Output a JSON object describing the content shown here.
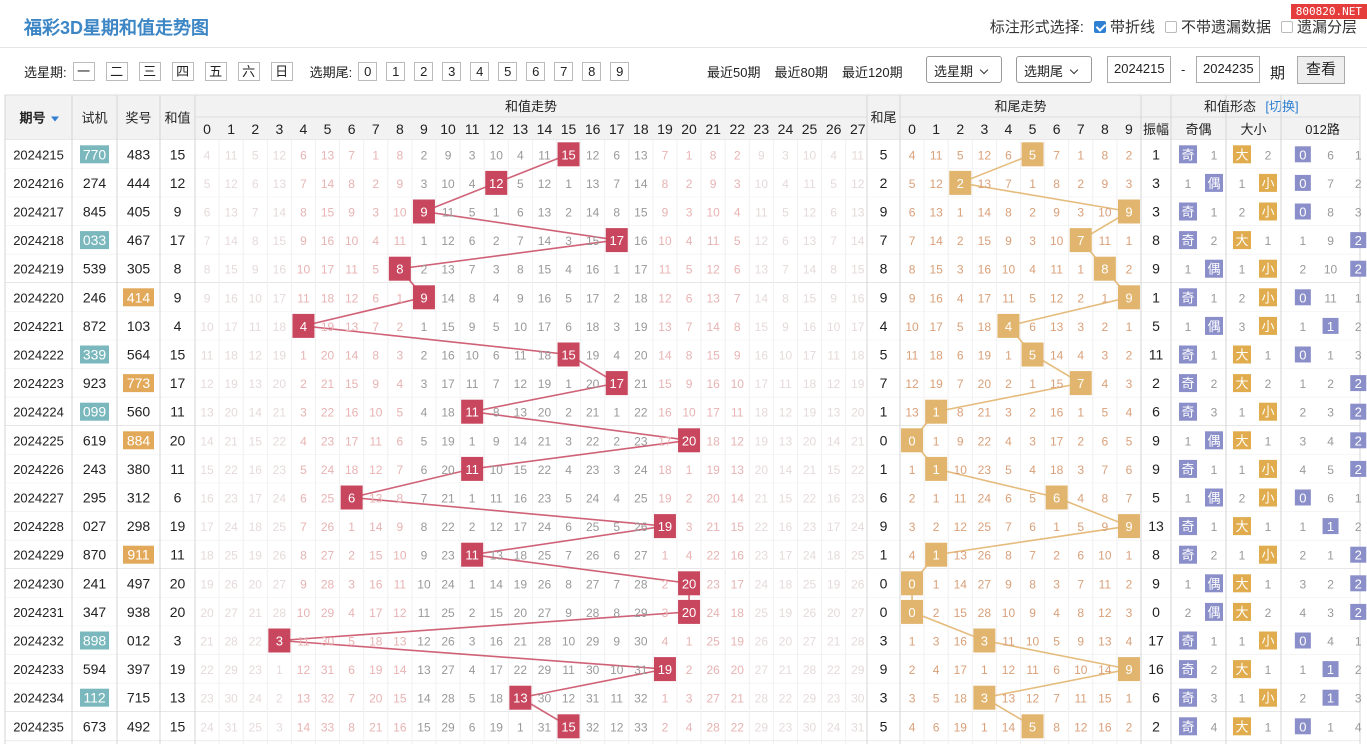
{
  "header": {
    "title": "福彩3D星期和值走势图",
    "mark_label": "标注形式选择:",
    "opt_line": "带折线",
    "opt_nomiss": "不带遗漏数据",
    "opt_layer": "遗漏分层",
    "brand": "800820.NET"
  },
  "filter": {
    "week_label": "选星期:",
    "weekdays": [
      "一",
      "二",
      "三",
      "四",
      "五",
      "六",
      "日"
    ],
    "tail_label": "选期尾:",
    "tails": [
      "0",
      "1",
      "2",
      "3",
      "4",
      "5",
      "6",
      "7",
      "8",
      "9"
    ],
    "recent": [
      "最近50期",
      "最近80期",
      "最近120期"
    ],
    "select_week": "选星期",
    "select_tail": "选期尾",
    "from": "2024215",
    "dash": "-",
    "to": "2024235",
    "unit": "期",
    "query": "查看"
  },
  "table": {
    "h_issue": "期号",
    "h_test": "试机",
    "h_prize": "奖号",
    "h_sum": "和值",
    "h_trend": "和值走势",
    "h_tail": "和尾",
    "h_tailtrend": "和尾走势",
    "h_form": "和值形态",
    "h_switch": "[切换]",
    "h_amp": "振幅",
    "h_oe": "奇偶",
    "h_bs": "大小",
    "h_012": "012路",
    "sum_cols": [
      "0",
      "1",
      "2",
      "3",
      "4",
      "5",
      "6",
      "7",
      "8",
      "9",
      "10",
      "11",
      "12",
      "13",
      "14",
      "15",
      "16",
      "17",
      "18",
      "19",
      "20",
      "21",
      "22",
      "23",
      "24",
      "25",
      "26",
      "27"
    ],
    "tail_cols": [
      "0",
      "1",
      "2",
      "3",
      "4",
      "5",
      "6",
      "7",
      "8",
      "9"
    ]
  },
  "colors": {
    "sum_hit": "#c8475f",
    "tail_hit": "#e2b56f",
    "test_teal": "#7ab8bd",
    "test_orange": "#e2a95a",
    "odd_even": "#8b8fc9",
    "big_small": "#e0ac4d",
    "route0": "#8b8fc9",
    "route1": "#8b8fc9",
    "route2": "#8b8fc9"
  },
  "rows": [
    {
      "issue": "2024215",
      "test": "770",
      "tt": "teal",
      "prize": "483",
      "pt": "",
      "sum": "15",
      "tail": "5",
      "amp": "1",
      "oe": "奇",
      "oem": "1",
      "bs": "大",
      "bsm": "2",
      "r": [
        0,
        6,
        1
      ],
      "rc": 0
    },
    {
      "issue": "2024216",
      "test": "274",
      "tt": "",
      "prize": "444",
      "pt": "",
      "sum": "12",
      "tail": "2",
      "amp": "3",
      "oe": "偶",
      "oem": "1",
      "bs": "小",
      "bsm": "1",
      "r": [
        0,
        7,
        2
      ],
      "rc": 0
    },
    {
      "issue": "2024217",
      "test": "845",
      "tt": "",
      "prize": "405",
      "pt": "",
      "sum": "9",
      "tail": "9",
      "amp": "3",
      "oe": "奇",
      "oem": "1",
      "bs": "小",
      "bsm": "2",
      "r": [
        0,
        8,
        3
      ],
      "rc": 0
    },
    {
      "issue": "2024218",
      "test": "033",
      "tt": "teal",
      "prize": "467",
      "pt": "",
      "sum": "17",
      "tail": "7",
      "amp": "8",
      "oe": "奇",
      "oem": "2",
      "bs": "大",
      "bsm": "1",
      "r": [
        1,
        9,
        2
      ],
      "rc": 2
    },
    {
      "issue": "2024219",
      "test": "539",
      "tt": "",
      "prize": "305",
      "pt": "",
      "sum": "8",
      "tail": "8",
      "amp": "9",
      "oe": "偶",
      "oem": "1",
      "bs": "小",
      "bsm": "1",
      "r": [
        2,
        10,
        2
      ],
      "rc": 2
    },
    {
      "issue": "2024220",
      "test": "246",
      "tt": "",
      "prize": "414",
      "pt": "orange",
      "sum": "9",
      "tail": "9",
      "amp": "1",
      "oe": "奇",
      "oem": "1",
      "bs": "小",
      "bsm": "2",
      "r": [
        0,
        11,
        1
      ],
      "rc": 0
    },
    {
      "issue": "2024221",
      "test": "872",
      "tt": "",
      "prize": "103",
      "pt": "",
      "sum": "4",
      "tail": "4",
      "amp": "5",
      "oe": "偶",
      "oem": "1",
      "bs": "小",
      "bsm": "3",
      "r": [
        1,
        1,
        2
      ],
      "rc": 1
    },
    {
      "issue": "2024222",
      "test": "339",
      "tt": "teal",
      "prize": "564",
      "pt": "",
      "sum": "15",
      "tail": "5",
      "amp": "11",
      "oe": "奇",
      "oem": "1",
      "bs": "大",
      "bsm": "1",
      "r": [
        0,
        1,
        3
      ],
      "rc": 0
    },
    {
      "issue": "2024223",
      "test": "923",
      "tt": "",
      "prize": "773",
      "pt": "orange",
      "sum": "17",
      "tail": "7",
      "amp": "2",
      "oe": "奇",
      "oem": "2",
      "bs": "大",
      "bsm": "2",
      "r": [
        1,
        2,
        2
      ],
      "rc": 2
    },
    {
      "issue": "2024224",
      "test": "099",
      "tt": "teal",
      "prize": "560",
      "pt": "",
      "sum": "11",
      "tail": "1",
      "amp": "6",
      "oe": "奇",
      "oem": "3",
      "bs": "小",
      "bsm": "1",
      "r": [
        2,
        3,
        2
      ],
      "rc": 2
    },
    {
      "issue": "2024225",
      "test": "619",
      "tt": "",
      "prize": "884",
      "pt": "orange",
      "sum": "20",
      "tail": "0",
      "amp": "9",
      "oe": "偶",
      "oem": "1",
      "bs": "大",
      "bsm": "1",
      "r": [
        3,
        4,
        2
      ],
      "rc": 2
    },
    {
      "issue": "2024226",
      "test": "243",
      "tt": "",
      "prize": "380",
      "pt": "",
      "sum": "11",
      "tail": "1",
      "amp": "9",
      "oe": "奇",
      "oem": "1",
      "bs": "小",
      "bsm": "1",
      "r": [
        4,
        5,
        2
      ],
      "rc": 2
    },
    {
      "issue": "2024227",
      "test": "295",
      "tt": "",
      "prize": "312",
      "pt": "",
      "sum": "6",
      "tail": "6",
      "amp": "5",
      "oe": "偶",
      "oem": "1",
      "bs": "小",
      "bsm": "2",
      "r": [
        0,
        6,
        1
      ],
      "rc": 0
    },
    {
      "issue": "2024228",
      "test": "027",
      "tt": "",
      "prize": "298",
      "pt": "",
      "sum": "19",
      "tail": "9",
      "amp": "13",
      "oe": "奇",
      "oem": "1",
      "bs": "大",
      "bsm": "1",
      "r": [
        1,
        1,
        2
      ],
      "rc": 1
    },
    {
      "issue": "2024229",
      "test": "870",
      "tt": "",
      "prize": "911",
      "pt": "orange",
      "sum": "11",
      "tail": "1",
      "amp": "8",
      "oe": "奇",
      "oem": "2",
      "bs": "小",
      "bsm": "1",
      "r": [
        2,
        1,
        2
      ],
      "rc": 2
    },
    {
      "issue": "2024230",
      "test": "241",
      "tt": "",
      "prize": "497",
      "pt": "",
      "sum": "20",
      "tail": "0",
      "amp": "9",
      "oe": "偶",
      "oem": "1",
      "bs": "大",
      "bsm": "1",
      "r": [
        3,
        2,
        2
      ],
      "rc": 2
    },
    {
      "issue": "2024231",
      "test": "347",
      "tt": "",
      "prize": "938",
      "pt": "",
      "sum": "20",
      "tail": "0",
      "amp": "0",
      "oe": "偶",
      "oem": "2",
      "bs": "大",
      "bsm": "2",
      "r": [
        4,
        3,
        2
      ],
      "rc": 2
    },
    {
      "issue": "2024232",
      "test": "898",
      "tt": "teal",
      "prize": "012",
      "pt": "",
      "sum": "3",
      "tail": "3",
      "amp": "17",
      "oe": "奇",
      "oem": "1",
      "bs": "小",
      "bsm": "1",
      "r": [
        0,
        4,
        1
      ],
      "rc": 0
    },
    {
      "issue": "2024233",
      "test": "594",
      "tt": "",
      "prize": "397",
      "pt": "",
      "sum": "19",
      "tail": "9",
      "amp": "16",
      "oe": "奇",
      "oem": "2",
      "bs": "大",
      "bsm": "1",
      "r": [
        1,
        1,
        2
      ],
      "rc": 1
    },
    {
      "issue": "2024234",
      "test": "112",
      "tt": "teal",
      "prize": "715",
      "pt": "",
      "sum": "13",
      "tail": "3",
      "amp": "6",
      "oe": "奇",
      "oem": "3",
      "bs": "小",
      "bsm": "1",
      "r": [
        2,
        1,
        3
      ],
      "rc": 1
    },
    {
      "issue": "2024235",
      "test": "673",
      "tt": "",
      "prize": "492",
      "pt": "",
      "sum": "15",
      "tail": "5",
      "amp": "2",
      "oe": "奇",
      "oem": "4",
      "bs": "大",
      "bsm": "1",
      "r": [
        0,
        1,
        4
      ],
      "rc": 0
    }
  ]
}
